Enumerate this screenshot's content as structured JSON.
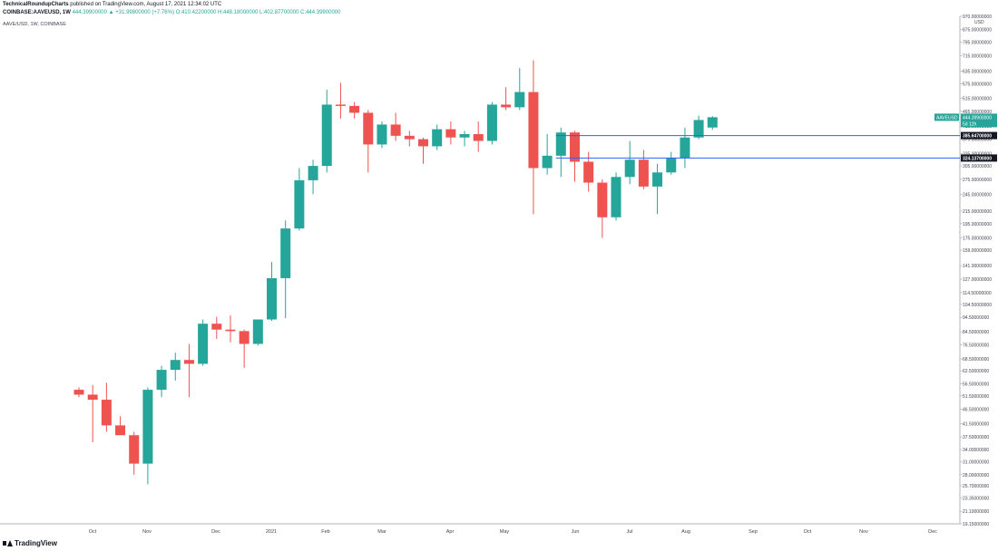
{
  "header": {
    "user": "TechnicalRoundupCharts",
    "published": "published on TradingView.com, August 17, 2021 12:34:02 UTC",
    "symbol_line": "COINBASE:AAVEUSD, 1W",
    "quote": "444.39900000 ▲ +31.99800000 (+7.76%)",
    "ohlc": "O:410.42200000 H:448.18000000 L:402.87700000 C:444.39900000"
  },
  "chart_title": "AAVE/USD, 1W, COINBASE",
  "footer": {
    "brand": "TradingView"
  },
  "colors": {
    "up": "#26a69a",
    "down": "#ef5350",
    "level_line": "#2962ff",
    "axis_label_bg": "#131722"
  },
  "chart_data": {
    "type": "candlestick",
    "y_scale": "log",
    "ylim": [
      19.15,
      970.0
    ],
    "y_axis_unit": "USD",
    "y_ticks": [
      "19.15000000",
      "21.10000000",
      "23.35000000",
      "25.70000000",
      "28.00000000",
      "31.00000000",
      "34.00000000",
      "37.50000000",
      "41.50000000",
      "46.50000000",
      "51.50000000",
      "56.50000000",
      "62.50000000",
      "68.50000000",
      "76.50000000",
      "84.50000000",
      "94.50000000",
      "104.50000000",
      "114.50000000",
      "127.00000000",
      "141.00000000",
      "159.00000000",
      "175.00000000",
      "195.00000000",
      "215.00000000",
      "245.00000000",
      "275.00000000",
      "305.00000000",
      "335.00000000",
      "375.00000000",
      "415.00000000",
      "465.00000000",
      "515.00000000",
      "575.00000000",
      "635.00000000",
      "715.00000000",
      "795.00000000",
      "875.00000000",
      "970.00000000"
    ],
    "x_labels": [
      "Oct",
      "Nov",
      "Dec",
      "2021",
      "Feb",
      "Mar",
      "Apr",
      "May",
      "Jun",
      "Jul",
      "Aug",
      "Sep",
      "Oct",
      "Nov",
      "Dec"
    ],
    "candles": [
      {
        "o": 54,
        "h": 55,
        "l": 51,
        "c": 52
      },
      {
        "o": 52,
        "h": 56,
        "l": 36,
        "c": 50
      },
      {
        "o": 50,
        "h": 57,
        "l": 39,
        "c": 41
      },
      {
        "o": 41,
        "h": 44,
        "l": 38,
        "c": 38
      },
      {
        "o": 38,
        "h": 39,
        "l": 28,
        "c": 30.5
      },
      {
        "o": 30.5,
        "h": 55,
        "l": 26,
        "c": 54
      },
      {
        "o": 54,
        "h": 65,
        "l": 51,
        "c": 63
      },
      {
        "o": 63,
        "h": 72,
        "l": 58,
        "c": 68
      },
      {
        "o": 68,
        "h": 77,
        "l": 51,
        "c": 66
      },
      {
        "o": 66,
        "h": 93,
        "l": 65,
        "c": 90
      },
      {
        "o": 90,
        "h": 95,
        "l": 80,
        "c": 86
      },
      {
        "o": 86,
        "h": 96,
        "l": 78,
        "c": 85
      },
      {
        "o": 85,
        "h": 86,
        "l": 64,
        "c": 77
      },
      {
        "o": 77,
        "h": 93,
        "l": 76,
        "c": 93
      },
      {
        "o": 93,
        "h": 145,
        "l": 92,
        "c": 128
      },
      {
        "o": 128,
        "h": 200,
        "l": 94,
        "c": 188
      },
      {
        "o": 188,
        "h": 300,
        "l": 185,
        "c": 273
      },
      {
        "o": 273,
        "h": 320,
        "l": 245,
        "c": 305
      },
      {
        "o": 305,
        "h": 550,
        "l": 290,
        "c": 490
      },
      {
        "o": 490,
        "h": 580,
        "l": 440,
        "c": 485
      },
      {
        "o": 485,
        "h": 500,
        "l": 440,
        "c": 460
      },
      {
        "o": 460,
        "h": 470,
        "l": 290,
        "c": 360
      },
      {
        "o": 360,
        "h": 430,
        "l": 350,
        "c": 420
      },
      {
        "o": 420,
        "h": 460,
        "l": 370,
        "c": 385
      },
      {
        "o": 385,
        "h": 400,
        "l": 355,
        "c": 375
      },
      {
        "o": 375,
        "h": 380,
        "l": 310,
        "c": 355
      },
      {
        "o": 355,
        "h": 420,
        "l": 345,
        "c": 405
      },
      {
        "o": 405,
        "h": 430,
        "l": 360,
        "c": 380
      },
      {
        "o": 380,
        "h": 400,
        "l": 355,
        "c": 390
      },
      {
        "o": 390,
        "h": 430,
        "l": 340,
        "c": 370
      },
      {
        "o": 370,
        "h": 500,
        "l": 360,
        "c": 490
      },
      {
        "o": 490,
        "h": 560,
        "l": 470,
        "c": 480
      },
      {
        "o": 480,
        "h": 650,
        "l": 470,
        "c": 540
      },
      {
        "o": 540,
        "h": 690,
        "l": 210,
        "c": 300
      },
      {
        "o": 300,
        "h": 390,
        "l": 285,
        "c": 330
      },
      {
        "o": 330,
        "h": 410,
        "l": 280,
        "c": 395
      },
      {
        "o": 395,
        "h": 400,
        "l": 270,
        "c": 315
      },
      {
        "o": 315,
        "h": 340,
        "l": 250,
        "c": 268
      },
      {
        "o": 268,
        "h": 275,
        "l": 175,
        "c": 205
      },
      {
        "o": 205,
        "h": 290,
        "l": 200,
        "c": 280
      },
      {
        "o": 280,
        "h": 370,
        "l": 265,
        "c": 320
      },
      {
        "o": 320,
        "h": 345,
        "l": 255,
        "c": 260
      },
      {
        "o": 260,
        "h": 310,
        "l": 210,
        "c": 290
      },
      {
        "o": 290,
        "h": 340,
        "l": 285,
        "c": 325
      },
      {
        "o": 325,
        "h": 410,
        "l": 300,
        "c": 380
      },
      {
        "o": 380,
        "h": 450,
        "l": 375,
        "c": 435
      },
      {
        "o": 410.422,
        "h": 448.18,
        "l": 402.877,
        "c": 444.399
      }
    ],
    "levels": [
      {
        "value": 385.647,
        "label": "385.64700000"
      },
      {
        "value": 324.137,
        "label": "324.13700000"
      }
    ],
    "last_price": {
      "value": 444.399,
      "label": "444.39900000",
      "name": "AAVEUSD",
      "countdown": "5d 12h"
    }
  }
}
